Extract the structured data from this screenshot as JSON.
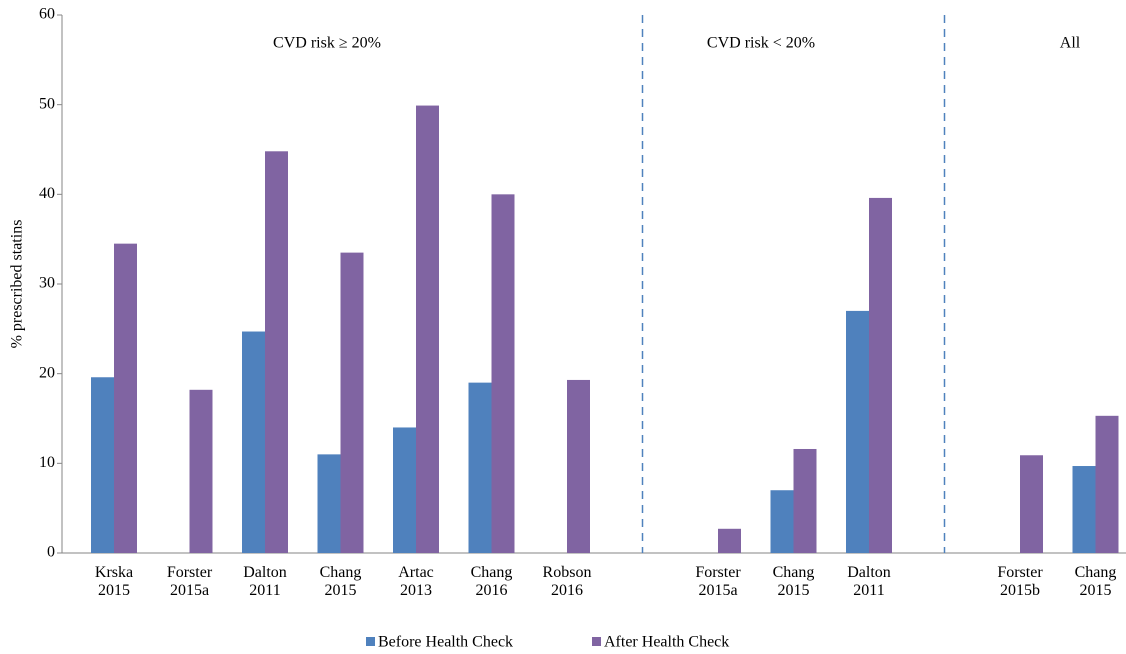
{
  "chart_data": {
    "type": "bar",
    "y_label": "% prescribed  statins",
    "categories": [
      "Krska 2015",
      "Forster 2015a",
      "Dalton 2011",
      "Chang 2015",
      "Artac 2013",
      "Chang 2016",
      "Robson 2016",
      null,
      "Forster 2015a",
      "Chang 2015",
      "Dalton 2011",
      null,
      "Forster 2015b",
      "Chang 2015"
    ],
    "series": [
      {
        "name": "Before Health Check",
        "color": "#4f81bd",
        "values": [
          19.6,
          null,
          24.7,
          11,
          14,
          19,
          null,
          null,
          null,
          7,
          27,
          null,
          null,
          9.7
        ]
      },
      {
        "name": "After Health Check",
        "color": "#8064a2",
        "values": [
          34.5,
          18.2,
          44.8,
          33.5,
          49.9,
          40,
          19.3,
          null,
          2.7,
          11.6,
          39.6,
          null,
          10.9,
          15.3
        ]
      }
    ],
    "annotations": [
      "CVD risk ≥ 20%",
      "CVD risk < 20%",
      "All"
    ],
    "ylim": [
      0,
      60
    ],
    "yticks": [
      0,
      10,
      20,
      30,
      40,
      50,
      60
    ],
    "legend": "bottom"
  }
}
